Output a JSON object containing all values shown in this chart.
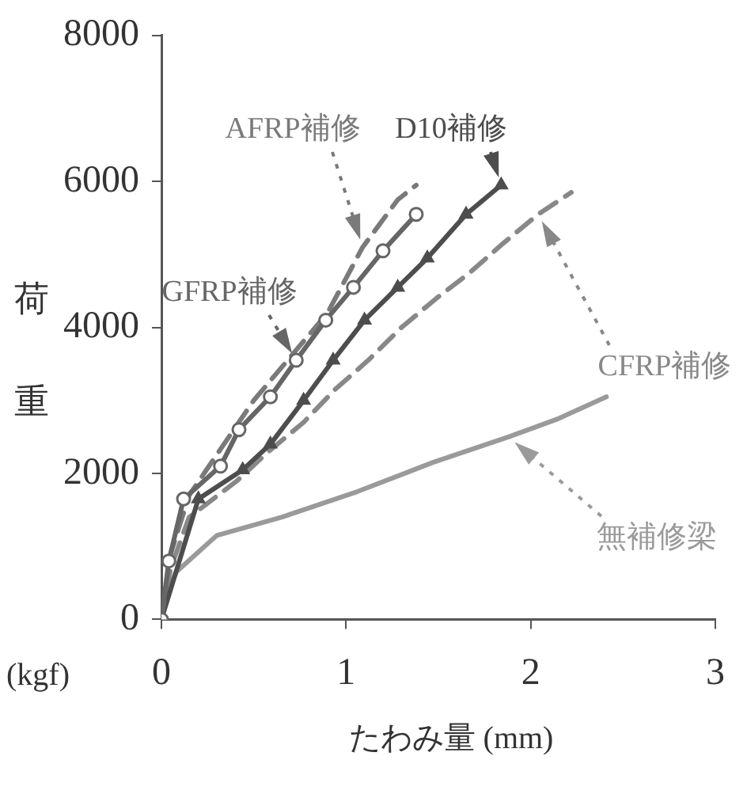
{
  "chart_data": {
    "type": "line",
    "xlabel": "たわみ量 (mm)",
    "ylabel": "荷重",
    "annotations": [
      "(kgf)"
    ],
    "xlim": [
      0,
      3
    ],
    "xticks": [
      0,
      1,
      2,
      3
    ],
    "ylim": [
      0,
      8000
    ],
    "yticks": [
      0,
      2000,
      4000,
      6000,
      8000
    ],
    "grid": false,
    "legend": false,
    "series": [
      {
        "name": "GFRP補修",
        "color": "#666666",
        "marker": "circle",
        "line_style": "solid",
        "x": [
          0,
          0.04,
          0.12,
          0.32,
          0.42,
          0.59,
          0.73,
          0.89,
          1.04,
          1.2,
          1.38
        ],
        "values": [
          0,
          800,
          1650,
          2100,
          2600,
          3050,
          3550,
          4100,
          4550,
          5050,
          5550
        ]
      },
      {
        "name": "AFRP補修",
        "color": "#7a7a7a",
        "marker": "none",
        "line_style": "dashed",
        "x": [
          0,
          0.05,
          0.15,
          0.5,
          0.9,
          1.09,
          1.28,
          1.38
        ],
        "values": [
          0,
          900,
          1700,
          3000,
          4200,
          5100,
          5750,
          5950
        ]
      },
      {
        "name": "D10補修",
        "color": "#4d4d4d",
        "marker": "triangle",
        "line_style": "solid",
        "x": [
          0,
          0.2,
          0.44,
          0.59,
          0.77,
          0.93,
          1.1,
          1.28,
          1.44,
          1.65,
          1.84
        ],
        "values": [
          0,
          1650,
          2050,
          2400,
          3000,
          3550,
          4100,
          4550,
          4950,
          5550,
          5950
        ]
      },
      {
        "name": "CFRP補修",
        "color": "#888888",
        "marker": "none",
        "line_style": "dashed",
        "x": [
          0,
          0.05,
          0.15,
          0.41,
          0.58,
          0.77,
          0.94,
          1.12,
          1.3,
          1.49,
          1.67,
          1.85,
          2.04,
          2.22
        ],
        "values": [
          0,
          700,
          1400,
          1900,
          2300,
          2700,
          3150,
          3550,
          4000,
          4400,
          4750,
          5150,
          5550,
          5850
        ]
      },
      {
        "name": "無補修梁",
        "color": "#9a9a9a",
        "marker": "none",
        "line_style": "solid",
        "x": [
          0,
          0.03,
          0.08,
          0.3,
          0.65,
          1.06,
          1.47,
          1.88,
          2.15,
          2.41
        ],
        "values": [
          0,
          350,
          650,
          1150,
          1400,
          1750,
          2150,
          2500,
          2750,
          3050
        ]
      }
    ]
  }
}
